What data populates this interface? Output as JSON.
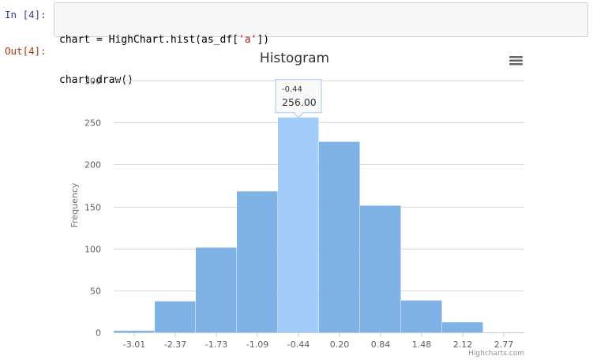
{
  "notebook": {
    "in_prompt": "In [4]:",
    "out_prompt": "Out[4]:",
    "code_line_1_pre": "chart = HighChart.hist(as_df[",
    "code_line_1_str": "'a'",
    "code_line_1_post": "])",
    "code_line_2": "chart.draw()"
  },
  "chart_data": {
    "type": "bar",
    "title": "Histogram",
    "xlabel": "",
    "ylabel": "Frequency",
    "ylim": [
      0,
      300
    ],
    "yticks": [
      0,
      50,
      100,
      150,
      200,
      250,
      300
    ],
    "bin_edges": [
      "-3.01",
      "-2.37",
      "-1.73",
      "-1.09",
      "-0.44",
      "0.20",
      "0.84",
      "1.48",
      "2.12",
      "2.77"
    ],
    "values": [
      2,
      37,
      101,
      168,
      256,
      227,
      151,
      38,
      12,
      0
    ],
    "bar_color": "#7fb2e5",
    "highlight_color": "#a2cdfb",
    "highlight_index": 4,
    "grid": true,
    "tooltip": {
      "x": "-0.44",
      "y": "256.00"
    },
    "credits": "Highcharts.com",
    "menu_icon": "hamburger-menu-icon"
  }
}
